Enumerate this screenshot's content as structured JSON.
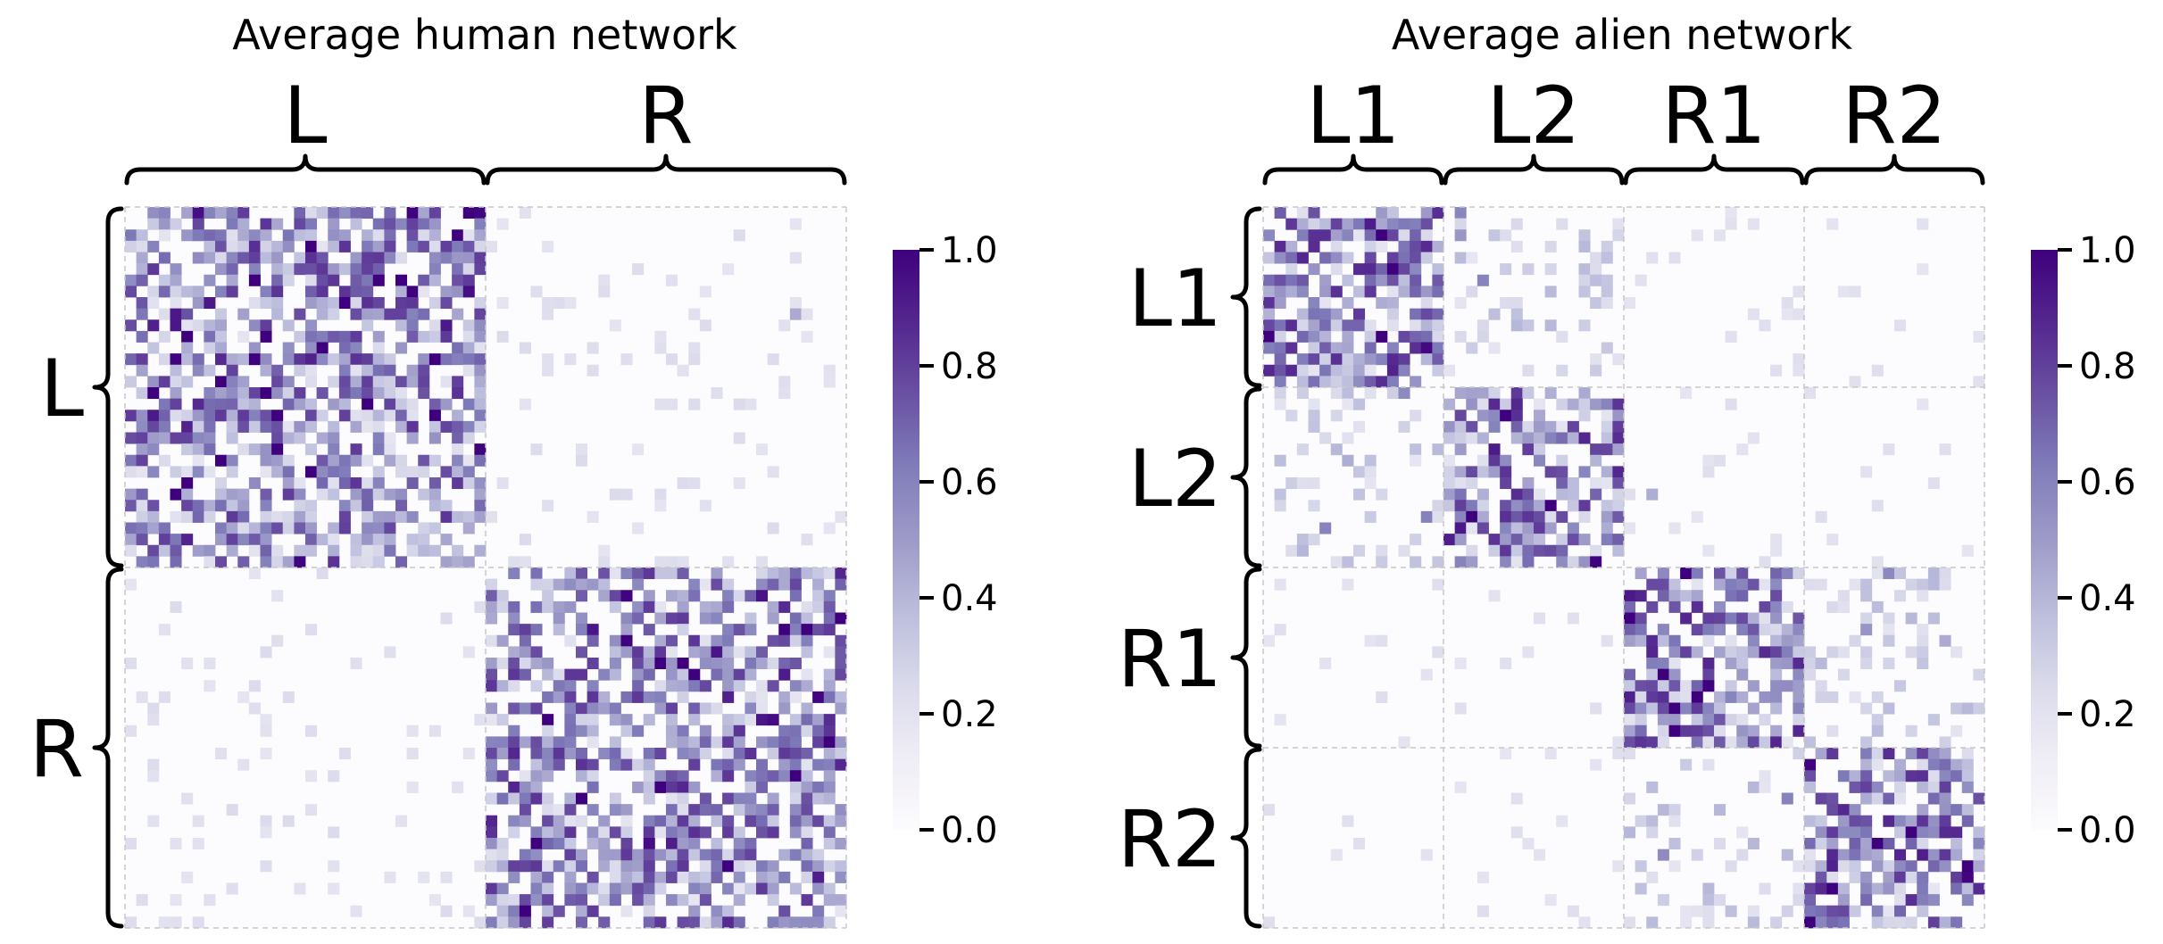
{
  "chart_data": [
    {
      "type": "heatmap",
      "title": "Average human network",
      "column_groups": [
        "L",
        "R"
      ],
      "row_groups": [
        "L",
        "R"
      ],
      "grid_size": [
        64,
        64
      ],
      "block_mean_values": [
        [
          0.3,
          0.03
        ],
        [
          0.03,
          0.3
        ]
      ],
      "value_range": [
        0.0,
        1.0
      ],
      "colormap": "Purples",
      "colorbar_ticks": [
        "0.0",
        "0.2",
        "0.4",
        "0.6",
        "0.8",
        "1.0"
      ],
      "block_dividers": "dashed light gray"
    },
    {
      "type": "heatmap",
      "title": "Average alien network",
      "column_groups": [
        "L1",
        "L2",
        "R1",
        "R2"
      ],
      "row_groups": [
        "L1",
        "L2",
        "R1",
        "R2"
      ],
      "grid_size": [
        64,
        64
      ],
      "block_mean_values": [
        [
          0.32,
          0.1,
          0.02,
          0.02
        ],
        [
          0.1,
          0.32,
          0.02,
          0.02
        ],
        [
          0.02,
          0.02,
          0.32,
          0.1
        ],
        [
          0.02,
          0.02,
          0.1,
          0.32
        ]
      ],
      "value_range": [
        0.0,
        1.0
      ],
      "colormap": "Purples",
      "colorbar_ticks": [
        "0.0",
        "0.2",
        "0.4",
        "0.6",
        "0.8",
        "1.0"
      ],
      "block_dividers": "dashed light gray"
    }
  ],
  "colors": {
    "cmap_low": "#fcfbfd",
    "cmap_high": "#3f007d",
    "divider": "#c8c8c8",
    "brace": "#000000"
  }
}
